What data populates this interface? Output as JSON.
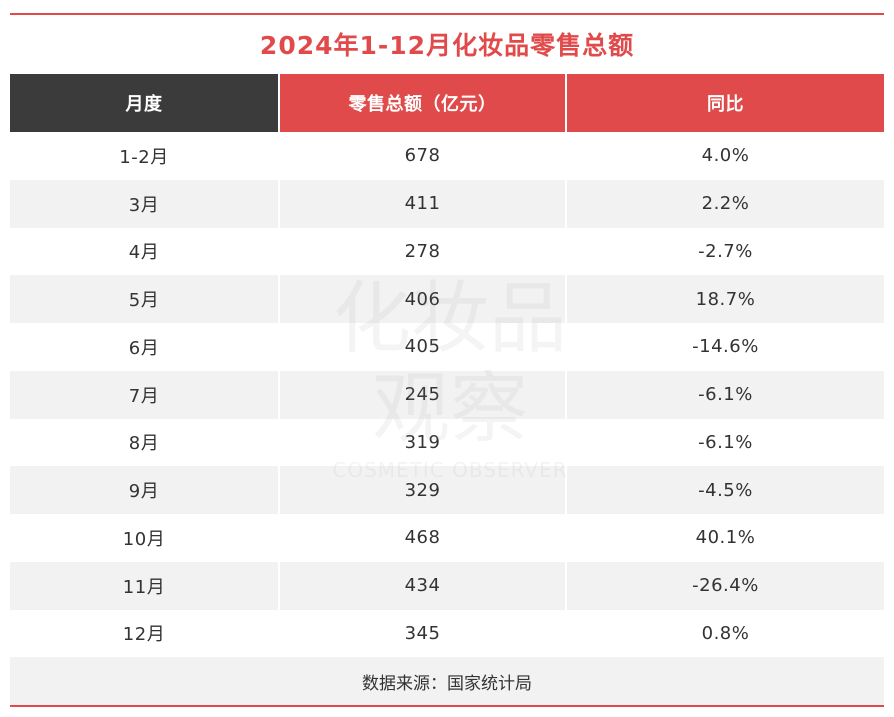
{
  "title": "2024年1-12月化妆品零售总额",
  "headers": [
    "月度",
    "零售总额（亿元）",
    "同比"
  ],
  "rows": [
    {
      "month": "1-2月",
      "value": "678",
      "yoy": "4.0%"
    },
    {
      "month": "3月",
      "value": "411",
      "yoy": "2.2%"
    },
    {
      "month": "4月",
      "value": "278",
      "yoy": "-2.7%"
    },
    {
      "month": "5月",
      "value": "406",
      "yoy": "18.7%"
    },
    {
      "month": "6月",
      "value": "405",
      "yoy": "-14.6%"
    },
    {
      "month": "7月",
      "value": "245",
      "yoy": "-6.1%"
    },
    {
      "month": "8月",
      "value": "319",
      "yoy": "-6.1%"
    },
    {
      "month": "9月",
      "value": "329",
      "yoy": "-4.5%"
    },
    {
      "month": "10月",
      "value": "468",
      "yoy": "40.1%"
    },
    {
      "month": "11月",
      "value": "434",
      "yoy": "-26.4%"
    },
    {
      "month": "12月",
      "value": "345",
      "yoy": "0.8%"
    }
  ],
  "footer": "数据来源：国家统计局",
  "colors": {
    "accent": "#e04a4a",
    "header_dark": "#3b3b3b",
    "stripe": "#f2f2f2"
  },
  "watermark": {
    "line1": "化妆品",
    "line2": "观察",
    "line3": "COSMETIC OBSERVER"
  }
}
